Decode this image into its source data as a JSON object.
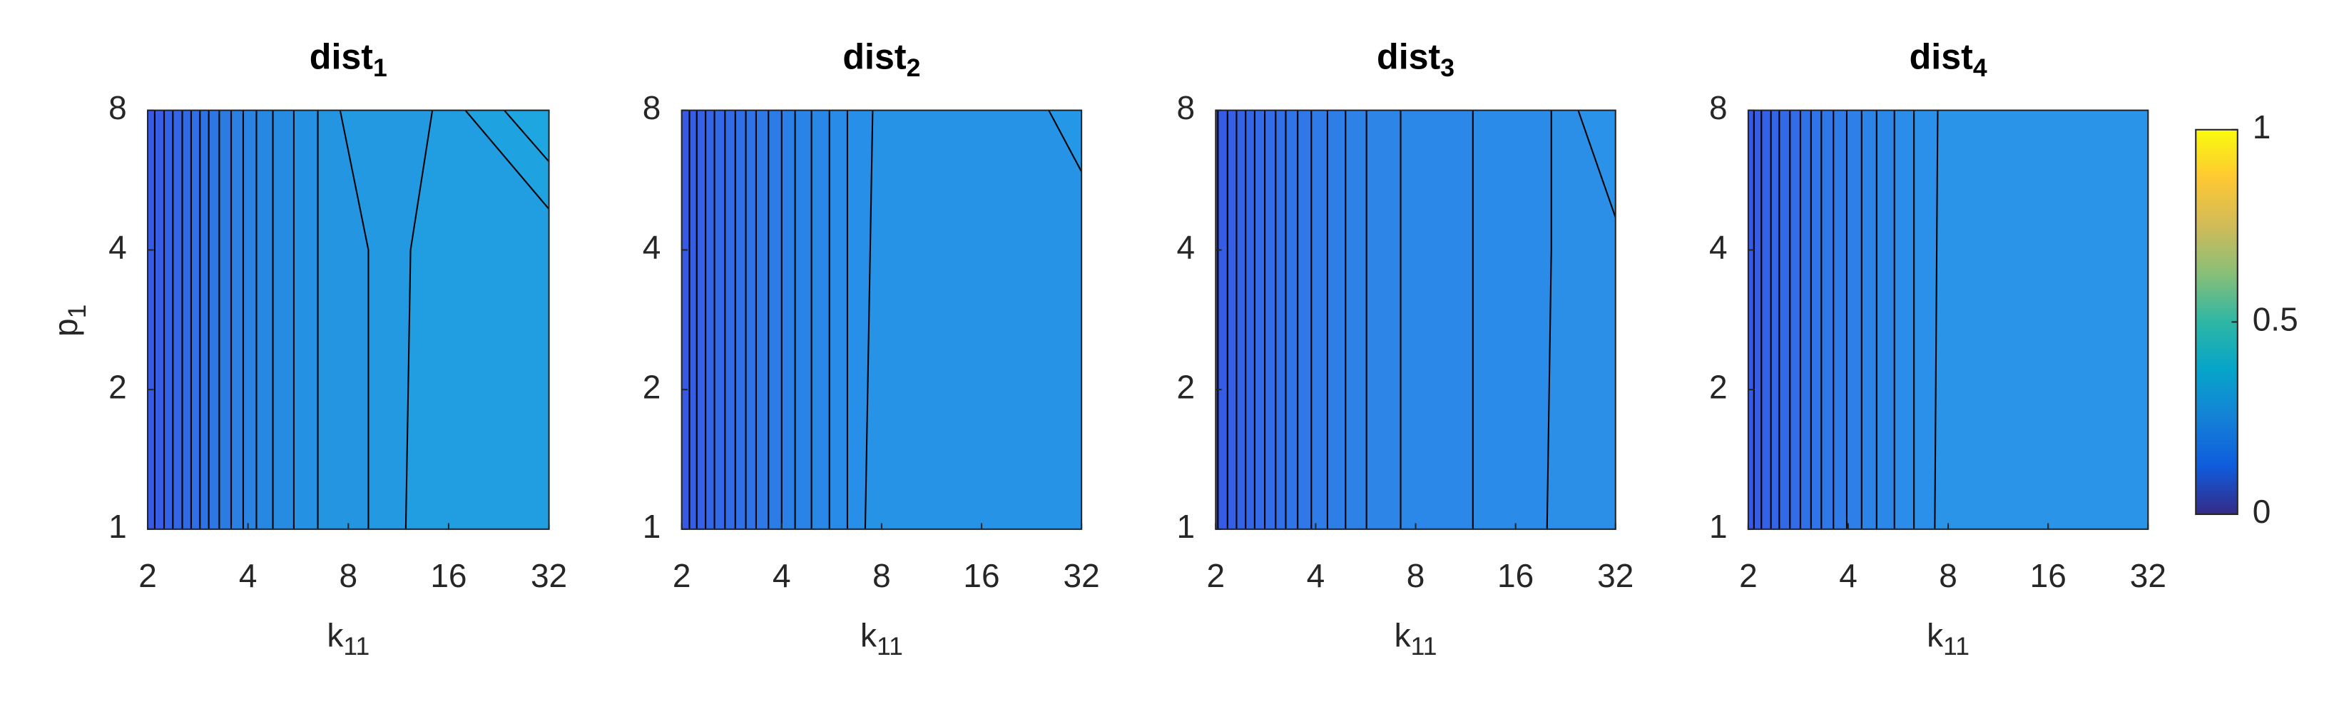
{
  "chart_data": [
    {
      "type": "contour",
      "title": {
        "text": "dist",
        "sub": "1"
      },
      "xlabel": {
        "text": "k",
        "sub": "11"
      },
      "ylabel": {
        "text": "p",
        "sub": "1"
      },
      "log_x": true,
      "log_y": true,
      "xlim": [
        2,
        32
      ],
      "ylim": [
        1,
        8
      ],
      "xticks": [
        2,
        4,
        8,
        16,
        32
      ],
      "yticks": [
        1,
        2,
        4,
        8
      ],
      "fill_colors": [
        "#3659e6",
        "#1ea6e0"
      ],
      "line_color": "#000000",
      "contours": [
        {
          "x": [
            2.1,
            2.1
          ],
          "y": [
            8,
            1
          ]
        },
        {
          "x": [
            2.24,
            2.24
          ],
          "y": [
            8,
            1
          ]
        },
        {
          "x": [
            2.38,
            2.38
          ],
          "y": [
            8,
            1
          ]
        },
        {
          "x": [
            2.54,
            2.54
          ],
          "y": [
            8,
            1
          ]
        },
        {
          "x": [
            2.7,
            2.7
          ],
          "y": [
            8,
            1
          ]
        },
        {
          "x": [
            2.87,
            2.87
          ],
          "y": [
            8,
            1
          ]
        },
        {
          "x": [
            3.05,
            3.05
          ],
          "y": [
            8,
            1
          ]
        },
        {
          "x": [
            3.28,
            3.28
          ],
          "y": [
            8,
            1
          ]
        },
        {
          "x": [
            3.56,
            3.56
          ],
          "y": [
            8,
            1
          ]
        },
        {
          "x": [
            3.87,
            3.87
          ],
          "y": [
            8,
            1
          ]
        },
        {
          "x": [
            4.24,
            4.24
          ],
          "y": [
            8,
            1
          ]
        },
        {
          "x": [
            4.75,
            4.75
          ],
          "y": [
            8,
            1
          ]
        },
        {
          "x": [
            5.49,
            5.49
          ],
          "y": [
            8,
            1
          ]
        },
        {
          "x": [
            6.48,
            6.48
          ],
          "y": [
            8,
            1
          ]
        },
        {
          "x": [
            7.56,
            9.19,
            9.19
          ],
          "y": [
            8,
            4,
            1
          ]
        },
        {
          "x": [
            14.3,
            12.3,
            11.9
          ],
          "y": [
            8,
            4,
            1
          ]
        },
        {
          "x": [
            17.96,
            32
          ],
          "y": [
            8,
            4.9
          ]
        },
        {
          "x": [
            23.5,
            32
          ],
          "y": [
            8,
            6.2
          ]
        }
      ]
    },
    {
      "type": "contour",
      "title": {
        "text": "dist",
        "sub": "2"
      },
      "xlabel": {
        "text": "k",
        "sub": "11"
      },
      "log_x": true,
      "log_y": true,
      "xlim": [
        2,
        32
      ],
      "ylim": [
        1,
        8
      ],
      "xticks": [
        2,
        4,
        8,
        16,
        32
      ],
      "yticks": [
        1,
        2,
        4,
        8
      ],
      "fill_colors": [
        "#3659e6",
        "#2597e7"
      ],
      "line_color": "#000000",
      "contours": [
        {
          "x": [
            2.11,
            2.11
          ],
          "y": [
            8,
            1
          ]
        },
        {
          "x": [
            2.22,
            2.22
          ],
          "y": [
            8,
            1
          ]
        },
        {
          "x": [
            2.36,
            2.36
          ],
          "y": [
            8,
            1
          ]
        },
        {
          "x": [
            2.51,
            2.51
          ],
          "y": [
            8,
            1
          ]
        },
        {
          "x": [
            2.7,
            2.7
          ],
          "y": [
            8,
            1
          ]
        },
        {
          "x": [
            2.9,
            2.9
          ],
          "y": [
            8,
            1
          ]
        },
        {
          "x": [
            3.12,
            3.12
          ],
          "y": [
            8,
            1
          ]
        },
        {
          "x": [
            3.35,
            3.35
          ],
          "y": [
            8,
            1
          ]
        },
        {
          "x": [
            3.65,
            3.65
          ],
          "y": [
            8,
            1
          ]
        },
        {
          "x": [
            4.0,
            4.0
          ],
          "y": [
            8,
            1
          ]
        },
        {
          "x": [
            4.39,
            4.39
          ],
          "y": [
            8,
            1
          ]
        },
        {
          "x": [
            4.92,
            4.92
          ],
          "y": [
            8,
            1
          ]
        },
        {
          "x": [
            5.57,
            5.57
          ],
          "y": [
            8,
            1
          ]
        },
        {
          "x": [
            6.31,
            6.31
          ],
          "y": [
            8,
            1
          ]
        },
        {
          "x": [
            7.52,
            7.14
          ],
          "y": [
            8,
            1
          ]
        },
        {
          "x": [
            25.5,
            32
          ],
          "y": [
            8,
            5.9
          ]
        }
      ]
    },
    {
      "type": "contour",
      "title": {
        "text": "dist",
        "sub": "3"
      },
      "xlabel": {
        "text": "k",
        "sub": "11"
      },
      "log_x": true,
      "log_y": true,
      "xlim": [
        2,
        32
      ],
      "ylim": [
        1,
        8
      ],
      "xticks": [
        2,
        4,
        8,
        16,
        32
      ],
      "yticks": [
        1,
        2,
        4,
        8
      ],
      "fill_colors": [
        "#3659e6",
        "#2a92e8"
      ],
      "line_color": "#000000",
      "contours": [
        {
          "x": [
            2.03,
            2.03
          ],
          "y": [
            8,
            1
          ]
        },
        {
          "x": [
            2.17,
            2.17
          ],
          "y": [
            8,
            1
          ]
        },
        {
          "x": [
            2.31,
            2.31
          ],
          "y": [
            8,
            1
          ]
        },
        {
          "x": [
            2.46,
            2.46
          ],
          "y": [
            8,
            1
          ]
        },
        {
          "x": [
            2.62,
            2.62
          ],
          "y": [
            8,
            1
          ]
        },
        {
          "x": [
            2.81,
            2.81
          ],
          "y": [
            8,
            1
          ]
        },
        {
          "x": [
            3.03,
            3.03
          ],
          "y": [
            8,
            1
          ]
        },
        {
          "x": [
            3.25,
            3.25
          ],
          "y": [
            8,
            1
          ]
        },
        {
          "x": [
            3.53,
            3.53
          ],
          "y": [
            8,
            1
          ]
        },
        {
          "x": [
            3.88,
            3.88
          ],
          "y": [
            8,
            1
          ]
        },
        {
          "x": [
            4.34,
            4.34
          ],
          "y": [
            8,
            1
          ]
        },
        {
          "x": [
            4.92,
            4.92
          ],
          "y": [
            8,
            1
          ]
        },
        {
          "x": [
            5.69,
            5.69
          ],
          "y": [
            8,
            1
          ]
        },
        {
          "x": [
            7.21,
            7.21
          ],
          "y": [
            8,
            1
          ]
        },
        {
          "x": [
            11.9,
            11.9
          ],
          "y": [
            8,
            1
          ]
        },
        {
          "x": [
            20.5,
            20.5,
            19.9
          ],
          "y": [
            8,
            4,
            1
          ]
        },
        {
          "x": [
            24.7,
            32
          ],
          "y": [
            8,
            4.7
          ]
        }
      ]
    },
    {
      "type": "contour",
      "title": {
        "text": "dist",
        "sub": "4"
      },
      "xlabel": {
        "text": "k",
        "sub": "11"
      },
      "log_x": true,
      "log_y": true,
      "xlim": [
        2,
        32
      ],
      "ylim": [
        1,
        8
      ],
      "xticks": [
        2,
        4,
        8,
        16,
        32
      ],
      "yticks": [
        1,
        2,
        4,
        8
      ],
      "fill_colors": [
        "#3659e6",
        "#2a94e9"
      ],
      "line_color": "#000000",
      "contours": [
        {
          "x": [
            2.08,
            2.08
          ],
          "y": [
            8,
            1
          ]
        },
        {
          "x": [
            2.19,
            2.19
          ],
          "y": [
            8,
            1
          ]
        },
        {
          "x": [
            2.34,
            2.34
          ],
          "y": [
            8,
            1
          ]
        },
        {
          "x": [
            2.48,
            2.48
          ],
          "y": [
            8,
            1
          ]
        },
        {
          "x": [
            2.67,
            2.67
          ],
          "y": [
            8,
            1
          ]
        },
        {
          "x": [
            2.87,
            2.87
          ],
          "y": [
            8,
            1
          ]
        },
        {
          "x": [
            3.09,
            3.09
          ],
          "y": [
            8,
            1
          ]
        },
        {
          "x": [
            3.32,
            3.32
          ],
          "y": [
            8,
            1
          ]
        },
        {
          "x": [
            3.61,
            3.61
          ],
          "y": [
            8,
            1
          ]
        },
        {
          "x": [
            3.96,
            3.96
          ],
          "y": [
            8,
            1
          ]
        },
        {
          "x": [
            4.39,
            4.39
          ],
          "y": [
            8,
            1
          ]
        },
        {
          "x": [
            4.87,
            4.87
          ],
          "y": [
            8,
            1
          ]
        },
        {
          "x": [
            5.51,
            5.51
          ],
          "y": [
            8,
            1
          ]
        },
        {
          "x": [
            6.31,
            6.31
          ],
          "y": [
            8,
            1
          ]
        },
        {
          "x": [
            7.44,
            7.29
          ],
          "y": [
            8,
            1
          ]
        }
      ]
    },
    {
      "type": "colorbar",
      "ylim": [
        0,
        1
      ],
      "yticks": [
        0,
        0.5,
        1
      ],
      "colors": [
        "#352a87",
        "#0f5cdd",
        "#1481d6",
        "#06a4ca",
        "#2eb7a4",
        "#87bf77",
        "#d1bb59",
        "#fec832",
        "#f9fb0e"
      ]
    }
  ]
}
